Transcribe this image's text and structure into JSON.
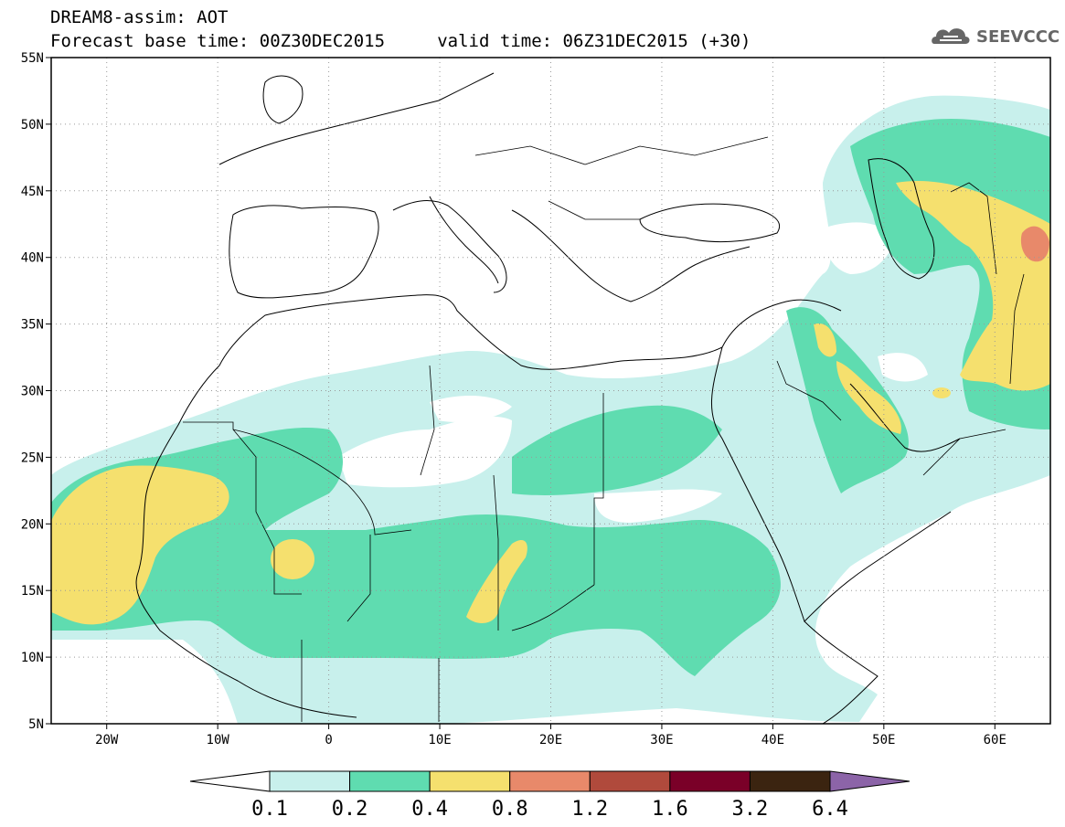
{
  "header": {
    "title_line1": "DREAM8-assim: AOT",
    "title_line2": "Forecast base time: 00Z30DEC2015     valid time: 06Z31DEC2015 (+30)"
  },
  "logo": {
    "text": "SEEVCCC",
    "icon": "cloud-logo-icon"
  },
  "map": {
    "lon_range": [
      -25,
      65
    ],
    "lat_range": [
      5,
      55
    ],
    "lon_ticks": [
      "20W",
      "10W",
      "0",
      "10E",
      "20E",
      "30E",
      "40E",
      "50E",
      "60E"
    ],
    "lat_ticks": [
      "55N",
      "50N",
      "45N",
      "40N",
      "35N",
      "30N",
      "25N",
      "20N",
      "15N",
      "10N",
      "5N"
    ],
    "grid": "dotted"
  },
  "colorbar": {
    "labels": [
      "0.1",
      "0.2",
      "0.4",
      "0.8",
      "1.2",
      "1.6",
      "3.2",
      "6.4"
    ],
    "colors": [
      "#ffffff",
      "#c8f0ec",
      "#5fdcb0",
      "#f5e06e",
      "#e8896a",
      "#b04a3c",
      "#7a0028",
      "#3b2410",
      "#8c64a8"
    ]
  },
  "levels": {
    "c1": "#c8f0ec",
    "c2": "#5fdcb0",
    "c3": "#f5e06e",
    "c4": "#e8896a"
  }
}
